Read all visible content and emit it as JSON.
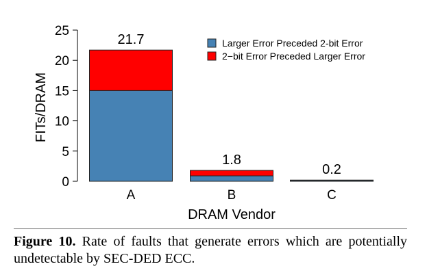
{
  "chart_data": {
    "type": "bar",
    "stacked": true,
    "categories": [
      "A",
      "B",
      "C"
    ],
    "series": [
      {
        "name": "Larger Error Preceded 2-bit Error",
        "values": [
          15.0,
          0.9,
          0.15
        ],
        "color": "#4682b4"
      },
      {
        "name": "2−bit Error Preceded Larger Error",
        "values": [
          6.7,
          0.9,
          0.05
        ],
        "color": "#ff0000"
      }
    ],
    "totals": [
      "21.7",
      "1.8",
      "0.2"
    ],
    "xlabel": "DRAM Vendor",
    "ylabel": "FITs/DRAM",
    "ylim": [
      0,
      25
    ],
    "yticks": [
      0,
      5,
      10,
      15,
      20,
      25
    ],
    "grid": false,
    "legend_position": "top-right"
  },
  "caption": {
    "label": "Figure 10.",
    "text": "Rate of faults that generate errors which are potentially undetectable by SEC-DED ECC."
  }
}
